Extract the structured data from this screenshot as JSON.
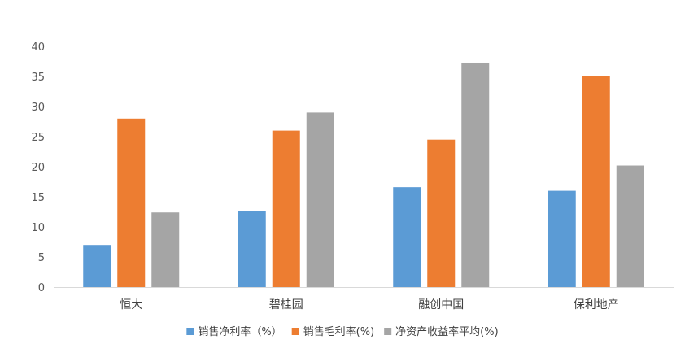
{
  "chart_data": {
    "type": "bar",
    "categories": [
      "恒大",
      "碧桂园",
      "融创中国",
      "保利地产"
    ],
    "series": [
      {
        "name": "销售净利率（%）",
        "values": [
          7.0,
          12.6,
          16.6,
          16.0
        ],
        "color": "#5B9BD5"
      },
      {
        "name": "销售毛利率(%)",
        "values": [
          28.0,
          26.0,
          24.5,
          35.0
        ],
        "color": "#ED7D31"
      },
      {
        "name": "净资产收益率平均(%)",
        "values": [
          12.4,
          29.0,
          37.3,
          20.2
        ],
        "color": "#A5A5A5"
      }
    ],
    "title": "",
    "xlabel": "",
    "ylabel": "",
    "ylim": [
      0,
      40
    ],
    "yticks": [
      0,
      5,
      10,
      15,
      20,
      25,
      30,
      35,
      40
    ],
    "grid": false,
    "legend_position": "bottom"
  }
}
